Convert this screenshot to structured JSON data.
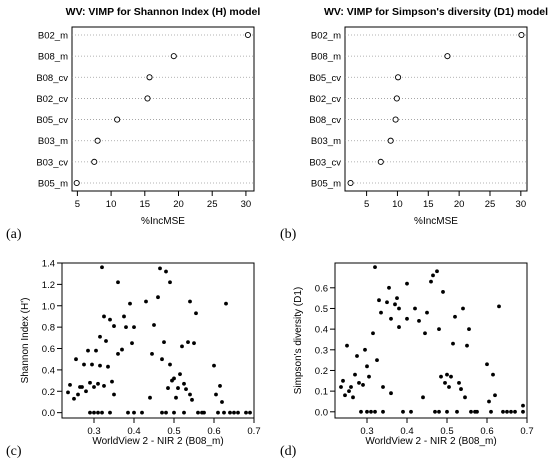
{
  "chart_data": [
    {
      "type": "scatter",
      "panel_label": "(a)",
      "title": "WV: VIMP for Shannon Index (H) model",
      "xlabel": "%IncMSE",
      "ylabel": "",
      "categories": [
        "B02_m",
        "B08_m",
        "B08_cv",
        "B02_cv",
        "B05_cv",
        "B03_m",
        "B03_cv",
        "B05_m"
      ],
      "values": [
        30.3,
        19.3,
        15.7,
        15.4,
        10.9,
        8.0,
        7.5,
        4.9
      ],
      "xlim": [
        4.2,
        31.2
      ],
      "xticks": [
        5,
        10,
        15,
        20,
        25,
        30
      ],
      "grid": "dotted"
    },
    {
      "type": "scatter",
      "panel_label": "(b)",
      "title": "WV: VIMP for Simpson's diversity (D1) model",
      "xlabel": "%IncMSE",
      "ylabel": "",
      "categories": [
        "B02_m",
        "B08_m",
        "B05_cv",
        "B02_cv",
        "B08_cv",
        "B03_m",
        "B03_cv",
        "B05_m"
      ],
      "values": [
        30.1,
        18.1,
        10.1,
        9.9,
        9.7,
        8.9,
        7.3,
        2.4
      ],
      "xlim": [
        1.5,
        31.0
      ],
      "xticks": [
        5,
        10,
        15,
        20,
        25,
        30
      ],
      "grid": "dotted"
    },
    {
      "type": "scatter",
      "panel_label": "(c)",
      "title": "",
      "xlabel": "WorldView 2 - NIR 2 (B08_m)",
      "ylabel": "Shannon Index (H')",
      "xlim": [
        0.22,
        0.7
      ],
      "ylim": [
        -0.05,
        1.4
      ],
      "xticks": [
        0.3,
        0.4,
        0.5,
        0.6,
        0.7
      ],
      "yticks": [
        0.0,
        0.2,
        0.4,
        0.6,
        0.8,
        1.0,
        1.2,
        1.4
      ],
      "points": [
        [
          0.235,
          0.19
        ],
        [
          0.24,
          0.26
        ],
        [
          0.25,
          0.13
        ],
        [
          0.255,
          0.5
        ],
        [
          0.26,
          0.17
        ],
        [
          0.265,
          0.24
        ],
        [
          0.27,
          0.24
        ],
        [
          0.275,
          0.45
        ],
        [
          0.28,
          0.2
        ],
        [
          0.285,
          0.58
        ],
        [
          0.29,
          0.0
        ],
        [
          0.29,
          0.28
        ],
        [
          0.295,
          0.45
        ],
        [
          0.3,
          0.0
        ],
        [
          0.3,
          0.24
        ],
        [
          0.305,
          0.58
        ],
        [
          0.31,
          0.27
        ],
        [
          0.31,
          0.0
        ],
        [
          0.315,
          0.44
        ],
        [
          0.315,
          0.71
        ],
        [
          0.32,
          1.36
        ],
        [
          0.32,
          0.0
        ],
        [
          0.325,
          0.25
        ],
        [
          0.325,
          0.9
        ],
        [
          0.33,
          0.67
        ],
        [
          0.335,
          0.43
        ],
        [
          0.34,
          0.0
        ],
        [
          0.34,
          0.87
        ],
        [
          0.345,
          0.29
        ],
        [
          0.35,
          0.81
        ],
        [
          0.35,
          0.17
        ],
        [
          0.36,
          0.55
        ],
        [
          0.36,
          1.22
        ],
        [
          0.37,
          0.59
        ],
        [
          0.375,
          0.9
        ],
        [
          0.38,
          0.8
        ],
        [
          0.385,
          0.0
        ],
        [
          0.39,
          1.02
        ],
        [
          0.395,
          0.65
        ],
        [
          0.4,
          0.0
        ],
        [
          0.4,
          0.8
        ],
        [
          0.42,
          0.0
        ],
        [
          0.43,
          1.04
        ],
        [
          0.44,
          0.14
        ],
        [
          0.445,
          0.55
        ],
        [
          0.45,
          0.82
        ],
        [
          0.46,
          1.08
        ],
        [
          0.465,
          1.35
        ],
        [
          0.47,
          0.5
        ],
        [
          0.47,
          0.0
        ],
        [
          0.475,
          0.66
        ],
        [
          0.48,
          1.32
        ],
        [
          0.48,
          0.0
        ],
        [
          0.485,
          0.23
        ],
        [
          0.49,
          1.22
        ],
        [
          0.49,
          0.45
        ],
        [
          0.495,
          0.3
        ],
        [
          0.5,
          0.0
        ],
        [
          0.5,
          0.32
        ],
        [
          0.505,
          0.14
        ],
        [
          0.51,
          0.23
        ],
        [
          0.515,
          0.36
        ],
        [
          0.52,
          0.62
        ],
        [
          0.525,
          0.0
        ],
        [
          0.525,
          0.27
        ],
        [
          0.53,
          0.22
        ],
        [
          0.535,
          0.66
        ],
        [
          0.54,
          1.04
        ],
        [
          0.54,
          0.17
        ],
        [
          0.545,
          0.12
        ],
        [
          0.55,
          0.65
        ],
        [
          0.555,
          0.93
        ],
        [
          0.56,
          0.0
        ],
        [
          0.57,
          0.0
        ],
        [
          0.575,
          0.0
        ],
        [
          0.6,
          0.44
        ],
        [
          0.605,
          0.17
        ],
        [
          0.61,
          0.0
        ],
        [
          0.615,
          0.25
        ],
        [
          0.62,
          0.1
        ],
        [
          0.625,
          0.0
        ],
        [
          0.63,
          1.02
        ],
        [
          0.64,
          0.0
        ],
        [
          0.65,
          0.0
        ],
        [
          0.66,
          0.0
        ],
        [
          0.68,
          0.0
        ],
        [
          0.69,
          0.0
        ]
      ]
    },
    {
      "type": "scatter",
      "panel_label": "(d)",
      "title": "",
      "xlabel": "WorldView 2 - NIR 2 (B08_m)",
      "ylabel": "Simpson's diversity (D1)",
      "xlim": [
        0.22,
        0.7
      ],
      "ylim": [
        -0.03,
        0.72
      ],
      "xticks": [
        0.3,
        0.4,
        0.5,
        0.6,
        0.7
      ],
      "yticks": [
        0.0,
        0.1,
        0.2,
        0.3,
        0.4,
        0.5,
        0.6
      ],
      "points": [
        [
          0.235,
          0.12
        ],
        [
          0.24,
          0.15
        ],
        [
          0.245,
          0.08
        ],
        [
          0.25,
          0.32
        ],
        [
          0.255,
          0.1
        ],
        [
          0.26,
          0.12
        ],
        [
          0.265,
          0.07
        ],
        [
          0.27,
          0.18
        ],
        [
          0.275,
          0.27
        ],
        [
          0.28,
          0.14
        ],
        [
          0.285,
          0.0
        ],
        [
          0.29,
          0.13
        ],
        [
          0.295,
          0.3
        ],
        [
          0.3,
          0.0
        ],
        [
          0.3,
          0.22
        ],
        [
          0.305,
          0.17
        ],
        [
          0.31,
          0.0
        ],
        [
          0.315,
          0.38
        ],
        [
          0.32,
          0.7
        ],
        [
          0.32,
          0.0
        ],
        [
          0.325,
          0.25
        ],
        [
          0.33,
          0.54
        ],
        [
          0.335,
          0.48
        ],
        [
          0.34,
          0.0
        ],
        [
          0.34,
          0.12
        ],
        [
          0.35,
          0.53
        ],
        [
          0.355,
          0.6
        ],
        [
          0.36,
          0.45
        ],
        [
          0.36,
          0.09
        ],
        [
          0.37,
          0.52
        ],
        [
          0.375,
          0.55
        ],
        [
          0.38,
          0.5
        ],
        [
          0.38,
          0.41
        ],
        [
          0.39,
          0.0
        ],
        [
          0.4,
          0.62
        ],
        [
          0.4,
          0.45
        ],
        [
          0.41,
          0.0
        ],
        [
          0.42,
          0.5
        ],
        [
          0.43,
          0.44
        ],
        [
          0.44,
          0.07
        ],
        [
          0.445,
          0.38
        ],
        [
          0.45,
          0.48
        ],
        [
          0.46,
          0.63
        ],
        [
          0.465,
          0.66
        ],
        [
          0.47,
          0.0
        ],
        [
          0.475,
          0.68
        ],
        [
          0.48,
          0.4
        ],
        [
          0.48,
          0.0
        ],
        [
          0.485,
          0.17
        ],
        [
          0.49,
          0.58
        ],
        [
          0.495,
          0.14
        ],
        [
          0.5,
          0.0
        ],
        [
          0.5,
          0.18
        ],
        [
          0.505,
          0.12
        ],
        [
          0.51,
          0.17
        ],
        [
          0.515,
          0.33
        ],
        [
          0.52,
          0.46
        ],
        [
          0.525,
          0.0
        ],
        [
          0.53,
          0.14
        ],
        [
          0.535,
          0.11
        ],
        [
          0.54,
          0.5
        ],
        [
          0.545,
          0.07
        ],
        [
          0.55,
          0.32
        ],
        [
          0.555,
          0.4
        ],
        [
          0.56,
          0.0
        ],
        [
          0.57,
          0.0
        ],
        [
          0.575,
          0.0
        ],
        [
          0.6,
          0.23
        ],
        [
          0.605,
          0.05
        ],
        [
          0.61,
          0.0
        ],
        [
          0.615,
          0.18
        ],
        [
          0.62,
          0.08
        ],
        [
          0.63,
          0.51
        ],
        [
          0.64,
          0.0
        ],
        [
          0.65,
          0.0
        ],
        [
          0.66,
          0.0
        ],
        [
          0.67,
          0.0
        ],
        [
          0.69,
          0.03
        ],
        [
          0.69,
          0.0
        ]
      ]
    }
  ]
}
